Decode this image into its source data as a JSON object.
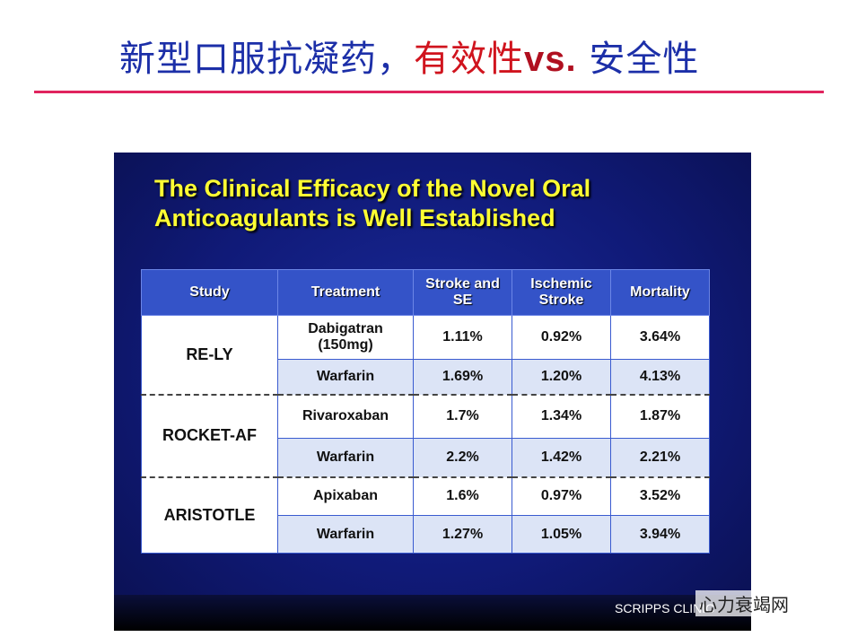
{
  "header": {
    "title": [
      {
        "text": "新型口服抗凝药，",
        "color": "#1c2fa8"
      },
      {
        "text": "有效性",
        "color": "#d0141e"
      },
      {
        "text": "vs.",
        "color": "#b01020"
      },
      {
        "text": " 安全性",
        "color": "#1c2fa8"
      }
    ]
  },
  "slide": {
    "title": [
      "The Clinical Efficacy of the Novel Oral",
      "Anticoagulants is Well Established"
    ],
    "table": {
      "columns": [
        "Study",
        "Treatment",
        "Stroke and SE",
        "Ischemic Stroke",
        "Mortality"
      ],
      "groups": [
        {
          "study": "RE-LY",
          "rows": [
            [
              "Dabigatran (150mg)",
              "1.11%",
              "0.92%",
              "3.64%"
            ],
            [
              "Warfarin",
              "1.69%",
              "1.20%",
              "4.13%"
            ]
          ]
        },
        {
          "study": "ROCKET-AF",
          "rows": [
            [
              "Rivaroxaban",
              "1.7%",
              "1.34%",
              "1.87%"
            ],
            [
              "Warfarin",
              "2.2%",
              "1.42%",
              "2.21%"
            ]
          ]
        },
        {
          "study": "ARISTOTLE",
          "rows": [
            [
              "Apixaban",
              "1.6%",
              "0.97%",
              "3.52%"
            ],
            [
              "Warfarin",
              "1.27%",
              "1.05%",
              "3.94%"
            ]
          ]
        }
      ]
    },
    "footer": "SCRIPPS CLINIC"
  },
  "watermark": "心力衰竭网"
}
